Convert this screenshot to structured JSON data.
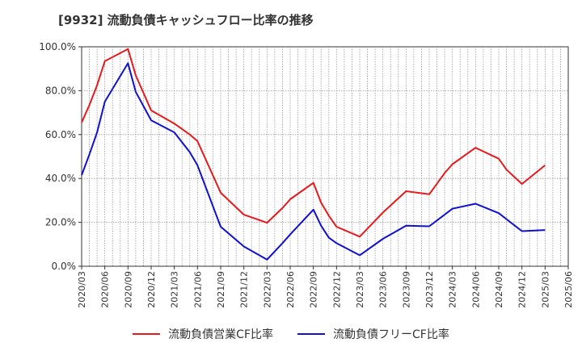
{
  "chart_data": {
    "type": "line",
    "title": "[9932]  流動負債キャッシュフロー比率の推移",
    "ylim": [
      0,
      100
    ],
    "y_ticks": [
      "0.0%",
      "20.0%",
      "40.0%",
      "60.0%",
      "80.0%",
      "100.0%"
    ],
    "x_ticks": [
      "2020/03",
      "2020/06",
      "2020/09",
      "2020/12",
      "2021/03",
      "2021/06",
      "2021/09",
      "2021/12",
      "2022/03",
      "2022/06",
      "2022/09",
      "2022/12",
      "2023/03",
      "2023/06",
      "2023/09",
      "2023/12",
      "2024/03",
      "2024/06",
      "2024/09",
      "2024/12",
      "2025/03",
      "2025/06"
    ],
    "grid": true,
    "legend_position": "bottom",
    "series": [
      {
        "name": "流動負債営業CF比率",
        "color": "#e8191c",
        "x": [
          "2020/03",
          "2020/04",
          "2020/05",
          "2020/06",
          "2020/09",
          "2020/10",
          "2020/12",
          "2021/03",
          "2021/05",
          "2021/06",
          "2021/09",
          "2021/12",
          "2022/03",
          "2022/05",
          "2022/06",
          "2022/09",
          "2022/10",
          "2022/11",
          "2022/12",
          "2023/03",
          "2023/06",
          "2023/09",
          "2023/12",
          "2024/02",
          "2024/03",
          "2024/06",
          "2024/09",
          "2024/10",
          "2024/12",
          "2025/03"
        ],
        "values": [
          65.5,
          73.5,
          82.5,
          93.5,
          99,
          87,
          71,
          65,
          60,
          57,
          33.5,
          23.5,
          19.8,
          26.5,
          30.5,
          38,
          29,
          23,
          18,
          13.5,
          24.5,
          34.2,
          32.8,
          42.5,
          46.5,
          54,
          49,
          44,
          37.5,
          46
        ]
      },
      {
        "name": "流動負債フリーCF比率",
        "color": "#1010d0",
        "x": [
          "2020/03",
          "2020/04",
          "2020/05",
          "2020/06",
          "2020/09",
          "2020/10",
          "2020/12",
          "2021/03",
          "2021/05",
          "2021/06",
          "2021/09",
          "2021/12",
          "2022/03",
          "2022/05",
          "2022/06",
          "2022/09",
          "2022/10",
          "2022/11",
          "2022/12",
          "2023/03",
          "2023/06",
          "2023/09",
          "2023/12",
          "2024/03",
          "2024/06",
          "2024/09",
          "2024/12",
          "2025/03"
        ],
        "values": [
          41.5,
          51,
          61,
          75,
          92.5,
          79.5,
          66.5,
          61,
          52,
          46,
          18,
          9,
          3,
          10.5,
          14.5,
          25.8,
          18.5,
          13,
          10.5,
          5,
          12.5,
          18.5,
          18.2,
          26.2,
          28.5,
          24.2,
          16,
          16.5
        ]
      }
    ]
  }
}
